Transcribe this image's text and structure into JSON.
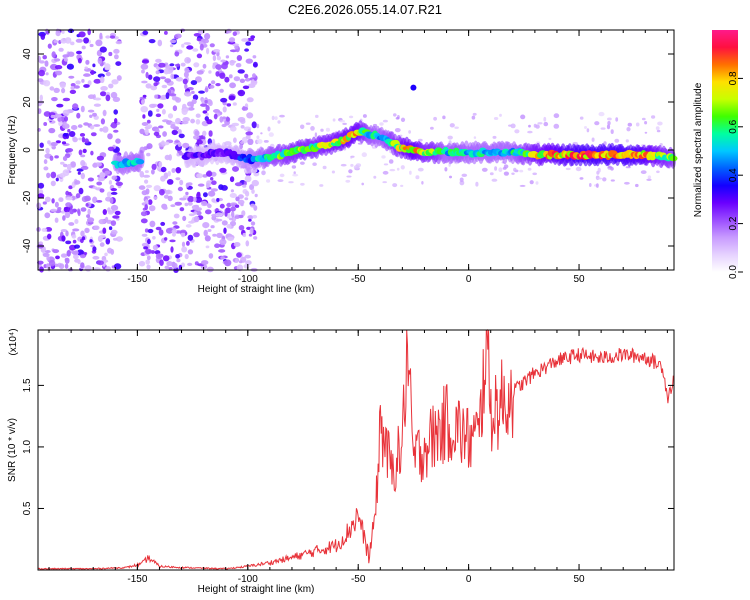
{
  "title": "C2E6.2026.055.14.07.R21",
  "chart_data": [
    {
      "type": "heatmap",
      "title": "C2E6.2026.055.14.07.R21",
      "xlabel": "Height of straight line (km)",
      "ylabel": "Frequency (Hz)",
      "xlim": [
        -195,
        93
      ],
      "ylim": [
        -50,
        50
      ],
      "xticks": [
        -150,
        -100,
        -50,
        0,
        50
      ],
      "yticks": [
        -40,
        -20,
        0,
        20,
        40
      ],
      "colorbar": {
        "label": "Normalized spectral amplitude",
        "range": [
          0,
          1
        ],
        "ticks": [
          "0.0",
          "0.2",
          "0.4",
          "0.6",
          "0.8"
        ],
        "colors": [
          "#ffffff",
          "#e6d2ff",
          "#c89bff",
          "#9b4dff",
          "#6a00ff",
          "#1400ff",
          "#0060ff",
          "#00c8ff",
          "#00ffa0",
          "#40ff00",
          "#c8ff00",
          "#ffe000",
          "#ff7000",
          "#ff1040",
          "#ff1a8a"
        ]
      },
      "ridge": {
        "x": [
          -160,
          -150,
          -140,
          -130,
          -120,
          -110,
          -100,
          -90,
          -80,
          -70,
          -60,
          -55,
          -50,
          -45,
          -40,
          -35,
          -30,
          -25,
          -20,
          -15,
          -10,
          -5,
          0,
          10,
          20,
          30,
          40,
          50,
          60,
          70,
          80,
          93
        ],
        "y": [
          -6,
          -5,
          -4,
          -3,
          -2,
          -1,
          -4,
          -3,
          -1,
          1,
          3,
          5,
          8,
          7,
          5,
          3,
          1,
          0,
          -1,
          -1,
          -1,
          -1,
          -1,
          -1,
          -1,
          -2,
          -2,
          -2,
          -2,
          -2,
          -2,
          -3
        ],
        "amplitude": [
          0.5,
          0.55,
          0.5,
          0.3,
          0.3,
          0.3,
          0.45,
          0.6,
          0.7,
          0.7,
          0.75,
          0.8,
          0.8,
          0.6,
          0.55,
          0.65,
          0.75,
          0.85,
          0.7,
          0.7,
          0.55,
          0.6,
          0.55,
          0.55,
          0.55,
          0.75,
          0.85,
          0.9,
          0.9,
          0.9,
          0.85,
          0.65
        ]
      },
      "isolated_points": [
        {
          "x": -25,
          "y": 26
        }
      ],
      "noise_bands": [
        [
          -195,
          -158
        ],
        [
          -148,
          -96
        ]
      ]
    },
    {
      "type": "line",
      "xlabel": "Height of straight line (km)",
      "ylabel": "SNR (10 * v/v)",
      "y_multiplier": "(x10⁴)",
      "xlim": [
        -195,
        93
      ],
      "ylim": [
        0,
        1.95
      ],
      "xticks": [
        -150,
        -100,
        -50,
        0,
        50
      ],
      "yticks": [
        "0.5",
        "1.0",
        "1.5"
      ],
      "color": "#e8333a",
      "series": [
        {
          "name": "SNR",
          "x": [
            -195,
            -170,
            -155,
            -148,
            -145,
            -140,
            -130,
            -110,
            -100,
            -90,
            -80,
            -70,
            -60,
            -55,
            -50,
            -45,
            -42,
            -40,
            -35,
            -30,
            -28,
            -25,
            -20,
            -15,
            -10,
            -5,
            0,
            5,
            8,
            10,
            15,
            20,
            30,
            40,
            50,
            60,
            70,
            80,
            88,
            90,
            93
          ],
          "y": [
            0.01,
            0.01,
            0.02,
            0.05,
            0.1,
            0.03,
            0.02,
            0.01,
            0.03,
            0.06,
            0.1,
            0.15,
            0.2,
            0.3,
            0.45,
            0.1,
            0.5,
            1.2,
            0.8,
            1.0,
            1.8,
            0.9,
            1.0,
            1.1,
            1.2,
            1.15,
            1.05,
            1.1,
            1.95,
            1.3,
            1.35,
            1.45,
            1.6,
            1.7,
            1.75,
            1.72,
            1.75,
            1.73,
            1.65,
            1.4,
            1.55
          ]
        }
      ]
    }
  ]
}
